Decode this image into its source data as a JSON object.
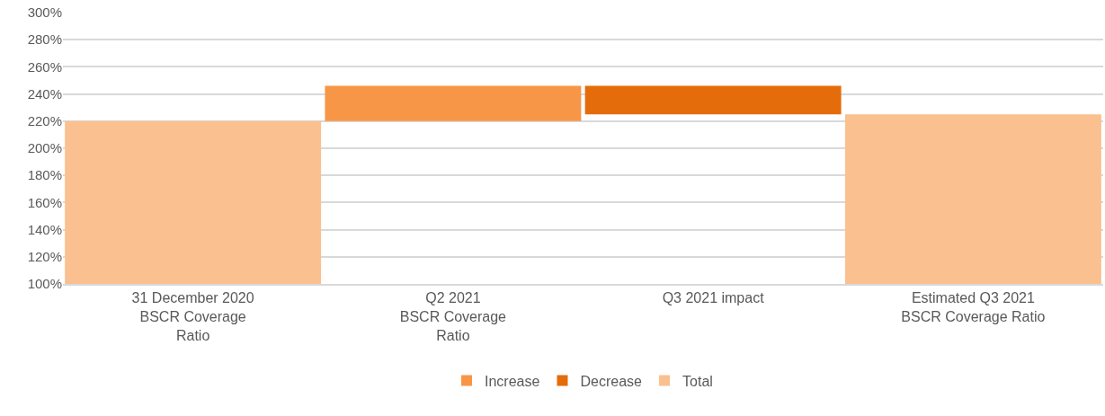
{
  "chart_data": {
    "type": "bar",
    "categories": [
      "31 December 2020\nBSCR Coverage\nRatio",
      "Q2 2021\nBSCR Coverage\nRatio",
      "Q3 2021 impact",
      "Estimated Q3 2021\nBSCR Coverage Ratio"
    ],
    "series": [
      {
        "name": "Increase",
        "color": "#f79646",
        "values": [
          null,
          26,
          null,
          null
        ],
        "base": [
          null,
          220,
          null,
          null
        ]
      },
      {
        "name": "Decrease",
        "color": "#e46c0a",
        "values": [
          null,
          null,
          -21,
          null
        ],
        "base": [
          null,
          null,
          246,
          null
        ]
      },
      {
        "name": "Total",
        "color": "#fac090",
        "values": [
          120,
          null,
          null,
          125
        ],
        "base": [
          100,
          null,
          null,
          100
        ]
      }
    ],
    "ylim": [
      100,
      300
    ],
    "yticks": [
      {
        "value": 100,
        "label": "100%"
      },
      {
        "value": 120,
        "label": "120%"
      },
      {
        "value": 140,
        "label": "140%"
      },
      {
        "value": 160,
        "label": "160%"
      },
      {
        "value": 180,
        "label": "180%"
      },
      {
        "value": 200,
        "label": "200%"
      },
      {
        "value": 220,
        "label": "220%"
      },
      {
        "value": 240,
        "label": "240%"
      },
      {
        "value": 260,
        "label": "260%"
      },
      {
        "value": 280,
        "label": "280%"
      },
      {
        "value": 300,
        "label": "300%"
      }
    ],
    "grid": "y",
    "legend": "bottom"
  }
}
